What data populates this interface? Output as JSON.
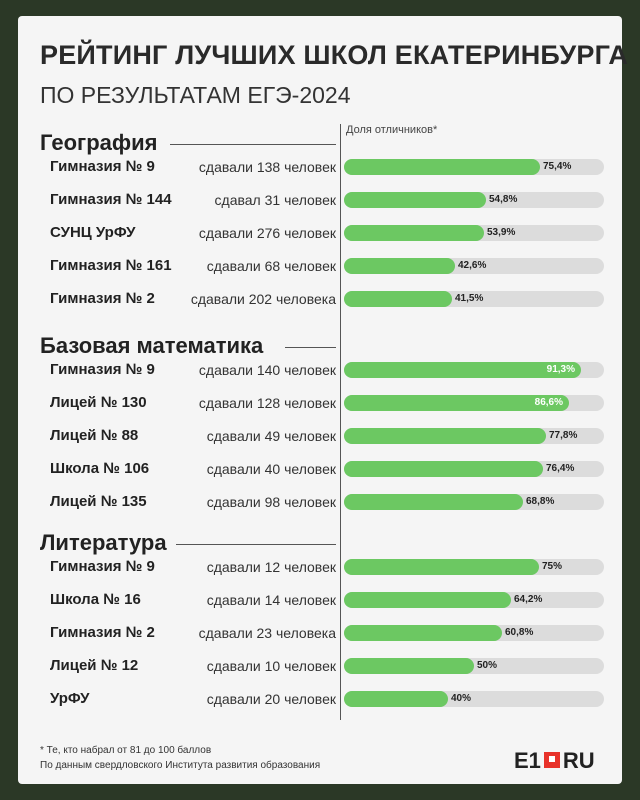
{
  "header": {
    "title": "РЕЙТИНГ ЛУЧШИХ ШКОЛ ЕКАТЕРИНБУРГА",
    "subtitle": "ПО РЕЗУЛЬТАТАМ ЕГЭ-2024",
    "legend_label": "Доля отличников*"
  },
  "chart_data": {
    "type": "bar",
    "orientation": "horizontal",
    "xlim": [
      0,
      100
    ],
    "unit": "%",
    "sections": [
      {
        "title": "География",
        "rows": [
          {
            "school": "Гимназия № 9",
            "count": "сдавали 138 человек",
            "value": 75.4,
            "label": "75,4%"
          },
          {
            "school": "Гимназия № 144",
            "count": "сдавал 31 человек",
            "value": 54.8,
            "label": "54,8%"
          },
          {
            "school": "СУНЦ УрФУ",
            "count": "сдавали 276 человек",
            "value": 53.9,
            "label": "53,9%"
          },
          {
            "school": "Гимназия № 161",
            "count": "сдавали 68 человек",
            "value": 42.6,
            "label": "42,6%"
          },
          {
            "school": "Гимназия № 2",
            "count": "сдавали 202 человека",
            "value": 41.5,
            "label": "41,5%"
          }
        ]
      },
      {
        "title": "Базовая математика",
        "rows": [
          {
            "school": "Гимназия № 9",
            "count": "сдавали 140 человек",
            "value": 91.3,
            "label": "91,3%"
          },
          {
            "school": "Лицей № 130",
            "count": "сдавали 128 человек",
            "value": 86.6,
            "label": "86,6%"
          },
          {
            "school": "Лицей № 88",
            "count": "сдавали 49 человек",
            "value": 77.8,
            "label": "77,8%"
          },
          {
            "school": "Школа № 106",
            "count": "сдавали 40 человек",
            "value": 76.4,
            "label": "76,4%"
          },
          {
            "school": "Лицей № 135",
            "count": "сдавали 98 человек",
            "value": 68.8,
            "label": "68,8%"
          }
        ]
      },
      {
        "title": "Литература",
        "rows": [
          {
            "school": "Гимназия № 9",
            "count": "сдавали 12 человек",
            "value": 75,
            "label": "75%"
          },
          {
            "school": "Школа № 16",
            "count": "сдавали 14 человек",
            "value": 64.2,
            "label": "64,2%"
          },
          {
            "school": "Гимназия № 2",
            "count": "сдавали 23 человека",
            "value": 60.8,
            "label": "60,8%"
          },
          {
            "school": "Лицей № 12",
            "count": "сдавали 10 человек",
            "value": 50,
            "label": "50%"
          },
          {
            "school": "УрФУ",
            "count": "сдавали 20 человек",
            "value": 40,
            "label": "40%"
          }
        ]
      }
    ]
  },
  "footer": {
    "note1": "* Те, кто набрал от 81 до 100 баллов",
    "note2": "По данным свердловского Института развития образования",
    "logo_left": "E1",
    "logo_right": "RU"
  },
  "colors": {
    "background": "#2b3826",
    "card": "#f5f5f5",
    "bar_fill": "#6cc862",
    "bar_track": "#dcdcdc",
    "logo_red": "#e8322a"
  }
}
